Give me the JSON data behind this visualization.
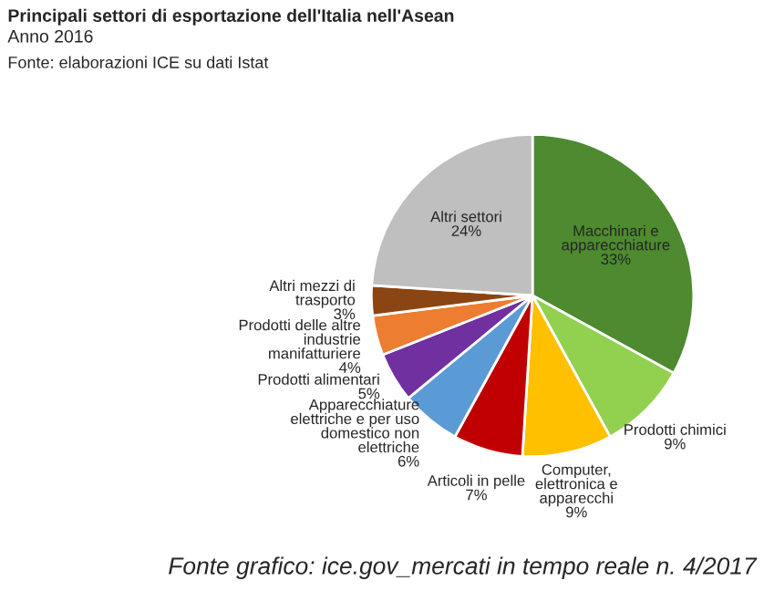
{
  "chart_data": {
    "type": "pie",
    "title": "Principali settori di esportazione dell'Italia nell'Asean",
    "subtitle": "Anno 2016",
    "annotations": [
      "Fonte: elaborazioni ICE su dati Istat",
      "Fonte grafico: ice.gov_mercati in tempo reale n. 4/2017"
    ],
    "categories": [
      "Macchinari e\napparecchiature",
      "Prodotti chimici",
      "Computer,\nelettronica e\napparecchi",
      "Articoli in pelle",
      "Apparecchiature\nelettriche e per uso\ndomestico non\nelettriche",
      "Prodotti alimentari",
      "Prodotti delle altre\nindustrie\nmanifatturiere",
      "Altri mezzi di\ntrasporto",
      "Altri settori"
    ],
    "values": [
      33,
      9,
      9,
      7,
      6,
      5,
      4,
      3,
      24
    ],
    "value_labels": [
      "33%",
      "9%",
      "9%",
      "7%",
      "6%",
      "5%",
      "4%",
      "3%",
      "24%"
    ],
    "colors": [
      "#4e8a2f",
      "#92d050",
      "#ffc000",
      "#c00000",
      "#5b9bd5",
      "#7030a0",
      "#ed7d31",
      "#8b4513",
      "#bfbfbf"
    ],
    "legend": false
  }
}
